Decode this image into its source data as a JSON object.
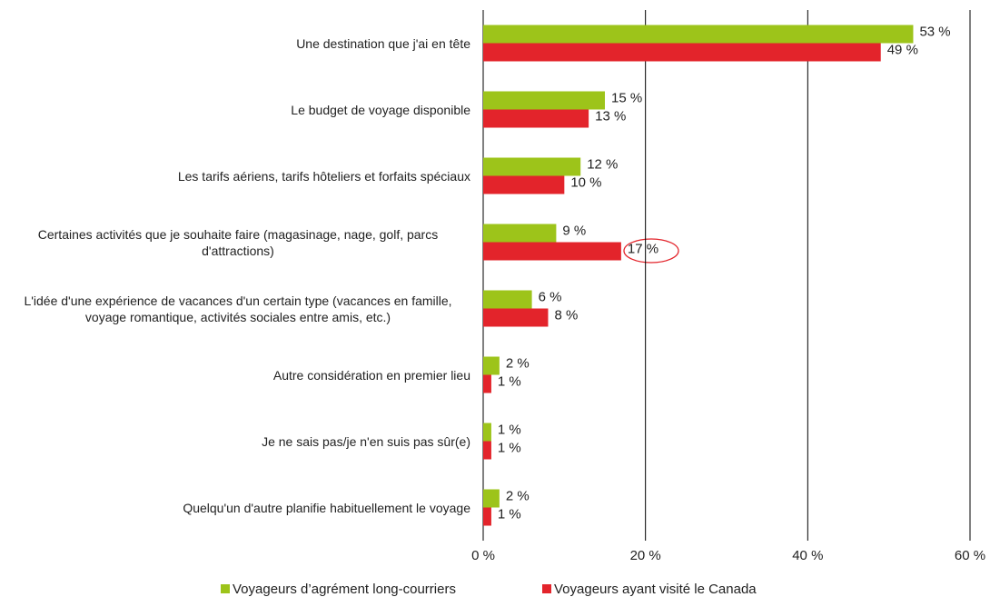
{
  "chart_data": {
    "type": "bar",
    "orientation": "horizontal",
    "categories": [
      "Une destination que j'ai en tête",
      "Le budget de voyage disponible",
      "Les tarifs aériens, tarifs hôteliers et forfaits spéciaux",
      "Certaines activités que je souhaite faire (magasinage, nage, golf, parcs d'attractions)",
      "L'idée d'une expérience de vacances d'un certain type (vacances en famille, voyage romantique, activités sociales entre amis, etc.)",
      "Autre considération en premier lieu",
      "Je ne sais pas/je n'en suis pas sûr(e)",
      "Quelqu'un d'autre planifie habituellement le voyage"
    ],
    "series": [
      {
        "name": "Voyageurs d’agrément long-courriers",
        "color": "#9dc41a",
        "values": [
          53,
          15,
          12,
          9,
          6,
          2,
          1,
          2
        ],
        "value_labels": [
          "53 %",
          "15 %",
          "12 %",
          "9 %",
          "6 %",
          "2 %",
          "1 %",
          "2 %"
        ]
      },
      {
        "name": "Voyageurs ayant visité le Canada",
        "color": "#e3242b",
        "values": [
          49,
          13,
          10,
          17,
          8,
          1,
          1,
          1
        ],
        "value_labels": [
          "49 %",
          "13 %",
          "10 %",
          "17 %",
          "8 %",
          "1 %",
          "1 %",
          "1 %"
        ]
      }
    ],
    "xlim": [
      0,
      60
    ],
    "xticks": [
      {
        "value": 0,
        "label": "0 %"
      },
      {
        "value": 20,
        "label": "20 %"
      },
      {
        "value": 40,
        "label": "40 %"
      },
      {
        "value": 60,
        "label": "60 %"
      }
    ],
    "grid": true,
    "legend": "bottom"
  }
}
